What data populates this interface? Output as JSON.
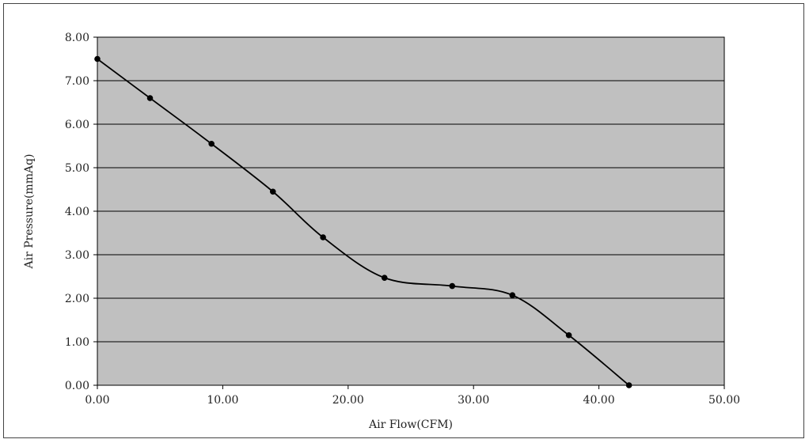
{
  "chart_data": {
    "type": "line",
    "title": "",
    "xlabel": "Air Flow(CFM)",
    "ylabel": "Air Pressure(mmAq)",
    "xlim": [
      0,
      50
    ],
    "ylim": [
      0,
      8
    ],
    "x_ticks": [
      "0.00",
      "10.00",
      "20.00",
      "30.00",
      "40.00",
      "50.00"
    ],
    "y_ticks": [
      "0.00",
      "1.00",
      "2.00",
      "3.00",
      "4.00",
      "5.00",
      "6.00",
      "7.00",
      "8.00"
    ],
    "grid": "horizontal",
    "legend": "none",
    "series": [
      {
        "x": [
          0.0,
          4.2,
          9.1,
          14.0,
          18.0,
          22.9,
          28.3,
          33.1,
          37.6,
          42.4
        ],
        "y": [
          7.5,
          6.6,
          5.55,
          4.45,
          3.4,
          2.47,
          2.28,
          2.07,
          1.15,
          0.0
        ]
      }
    ],
    "colors": {
      "plot_background": "#c0c0c0",
      "grid": "#000000",
      "line": "#000000",
      "marker": "#000000"
    }
  }
}
